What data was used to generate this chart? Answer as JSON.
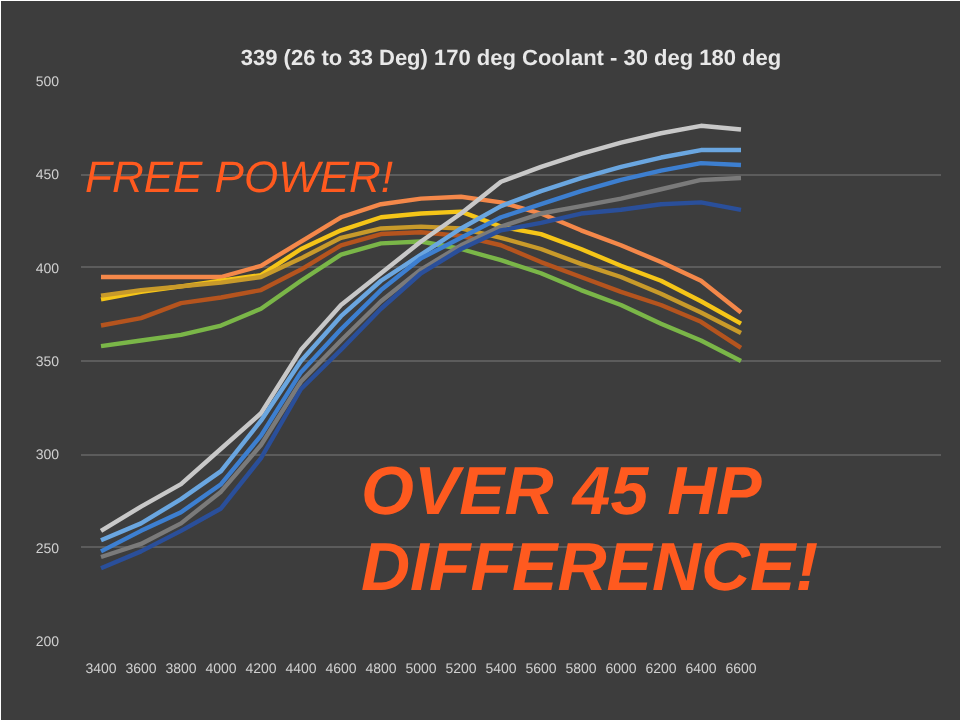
{
  "chart_data": {
    "type": "line",
    "title": "339 (26 to 33 Deg) 170 deg Coolant - 30 deg 180 deg",
    "x": [
      3400,
      3600,
      3800,
      4000,
      4200,
      4400,
      4600,
      4800,
      5000,
      5200,
      5400,
      5600,
      5800,
      6000,
      6200,
      6400,
      6600
    ],
    "series": [
      {
        "color": "#f4884a",
        "values": [
          395,
          395,
          395,
          395,
          401,
          414,
          427,
          434,
          437,
          438,
          435,
          429,
          420,
          412,
          403,
          393,
          376
        ]
      },
      {
        "color": "#f5c518",
        "values": [
          383,
          387,
          390,
          393,
          396,
          410,
          420,
          427,
          429,
          430,
          422,
          418,
          410,
          401,
          393,
          382,
          370
        ]
      },
      {
        "color": "#c89a2a",
        "values": [
          385,
          388,
          390,
          392,
          395,
          405,
          416,
          421,
          422,
          421,
          416,
          410,
          402,
          395,
          386,
          376,
          365
        ]
      },
      {
        "color": "#b5541e",
        "values": [
          369,
          373,
          381,
          384,
          388,
          399,
          412,
          418,
          419,
          417,
          412,
          403,
          395,
          387,
          380,
          371,
          357
        ]
      },
      {
        "color": "#7ab648",
        "values": [
          358,
          361,
          364,
          369,
          378,
          393,
          407,
          413,
          414,
          410,
          404,
          397,
          388,
          380,
          370,
          361,
          350
        ]
      },
      {
        "color": "#c8c8c8",
        "values": [
          259,
          272,
          284,
          303,
          322,
          356,
          380,
          397,
          414,
          429,
          446,
          454,
          461,
          467,
          472,
          476,
          474
        ]
      },
      {
        "color": "#6aa6e0",
        "values": [
          254,
          263,
          276,
          291,
          318,
          350,
          374,
          393,
          407,
          421,
          433,
          441,
          448,
          454,
          459,
          463,
          463
        ]
      },
      {
        "color": "#3d7fd0",
        "values": [
          248,
          259,
          269,
          284,
          310,
          344,
          367,
          388,
          405,
          416,
          427,
          434,
          441,
          447,
          452,
          456,
          455
        ]
      },
      {
        "color": "#7a7a7a",
        "values": [
          245,
          252,
          263,
          280,
          305,
          339,
          361,
          382,
          399,
          412,
          422,
          429,
          433,
          437,
          442,
          447,
          448
        ]
      },
      {
        "color": "#2a4f9a",
        "values": [
          239,
          248,
          259,
          271,
          298,
          335,
          356,
          378,
          397,
          410,
          420,
          424,
          429,
          431,
          434,
          435,
          431
        ]
      }
    ],
    "xlim": [
      3300,
      7600
    ],
    "ylim": [
      200,
      500
    ],
    "xticks": [
      3400,
      3600,
      3800,
      4000,
      4200,
      4400,
      4600,
      4800,
      5000,
      5200,
      5400,
      5600,
      5800,
      6000,
      6200,
      6400,
      6600
    ],
    "yticks": [
      200,
      250,
      300,
      350,
      400,
      450,
      500
    ],
    "grid": "y",
    "marker": "none",
    "line_style": "solid",
    "annotations": [
      "FREE POWER!",
      "OVER 45 HP DIFFERENCE!"
    ]
  }
}
